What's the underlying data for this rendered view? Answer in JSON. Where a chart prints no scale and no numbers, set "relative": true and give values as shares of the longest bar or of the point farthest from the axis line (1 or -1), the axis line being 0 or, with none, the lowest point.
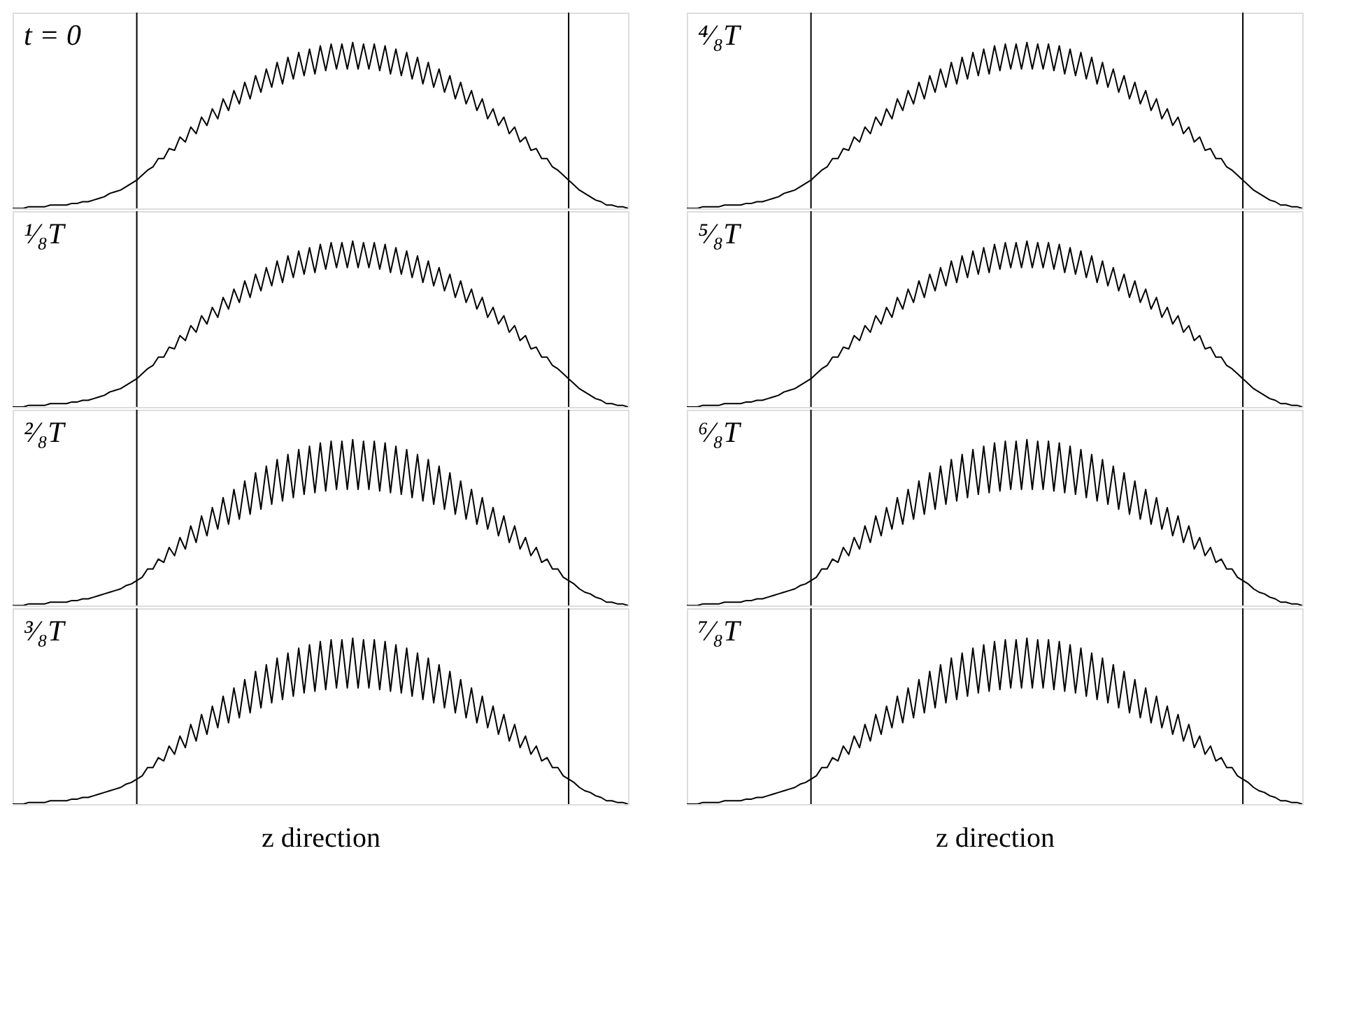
{
  "chart_data": [
    {
      "type": "line",
      "title": "t = 0",
      "relative": true,
      "color": "#000000",
      "grid": "x",
      "categories": [
        null,
        null,
        null,
        null,
        null,
        null,
        null,
        null,
        null,
        null,
        null,
        null,
        null,
        null,
        null,
        null,
        null,
        null,
        null,
        null,
        null,
        null,
        null,
        null,
        null,
        null,
        null,
        null,
        null,
        null,
        null,
        null,
        null,
        null,
        null,
        null,
        null,
        null,
        null,
        null,
        null,
        null,
        null,
        null,
        null,
        null,
        null,
        null,
        null,
        null,
        null,
        null,
        null,
        null,
        null,
        null,
        null,
        null,
        null,
        null,
        null,
        null,
        null,
        null,
        null,
        null,
        null,
        null,
        null,
        null,
        null,
        null,
        null,
        null,
        null,
        null,
        null,
        null,
        null,
        null,
        null,
        null,
        null,
        null,
        null,
        null,
        null,
        null,
        null,
        null,
        null,
        null,
        null,
        null,
        null,
        null,
        null,
        null,
        null,
        null,
        null,
        null,
        null,
        null,
        null,
        null,
        null,
        null,
        null,
        null,
        null,
        null,
        null,
        null,
        null
      ],
      "values": [
        0,
        0,
        0,
        0.01,
        0.01,
        0.01,
        0.01,
        0.02,
        0.02,
        0.02,
        0.02,
        0.03,
        0.03,
        0.04,
        0.04,
        0.05,
        0.06,
        0.07,
        0.09,
        0.1,
        0.11,
        0.13,
        0.15,
        0.17,
        0.2,
        0.23,
        0.25,
        0.3,
        0.3,
        0.36,
        0.35,
        0.43,
        0.4,
        0.49,
        0.45,
        0.55,
        0.5,
        0.6,
        0.54,
        0.66,
        0.59,
        0.71,
        0.63,
        0.76,
        0.66,
        0.8,
        0.7,
        0.84,
        0.73,
        0.88,
        0.75,
        0.91,
        0.78,
        0.94,
        0.8,
        0.96,
        0.81,
        0.98,
        0.83,
        0.99,
        0.84,
        0.99,
        0.84,
        1.0,
        0.84,
        0.99,
        0.84,
        0.99,
        0.83,
        0.98,
        0.81,
        0.96,
        0.8,
        0.94,
        0.78,
        0.91,
        0.75,
        0.88,
        0.73,
        0.84,
        0.7,
        0.8,
        0.66,
        0.76,
        0.63,
        0.71,
        0.59,
        0.66,
        0.54,
        0.6,
        0.5,
        0.55,
        0.45,
        0.49,
        0.4,
        0.43,
        0.35,
        0.36,
        0.3,
        0.3,
        0.25,
        0.23,
        0.2,
        0.17,
        0.14,
        0.11,
        0.09,
        0.07,
        0.05,
        0.04,
        0.02,
        0.02,
        0.01,
        0.01,
        0
      ]
    },
    {
      "type": "line",
      "title": "¹⁄₈T",
      "relative": true,
      "color": "#000000",
      "grid": "x",
      "categories": [
        null,
        null,
        null,
        null,
        null,
        null,
        null,
        null,
        null,
        null,
        null,
        null,
        null,
        null,
        null,
        null,
        null,
        null,
        null,
        null,
        null,
        null,
        null,
        null,
        null,
        null,
        null,
        null,
        null,
        null,
        null,
        null,
        null,
        null,
        null,
        null,
        null,
        null,
        null,
        null,
        null,
        null,
        null,
        null,
        null,
        null,
        null,
        null,
        null,
        null,
        null,
        null,
        null,
        null,
        null,
        null,
        null,
        null,
        null,
        null,
        null,
        null,
        null,
        null,
        null,
        null,
        null,
        null,
        null,
        null,
        null,
        null,
        null,
        null,
        null,
        null,
        null,
        null,
        null,
        null,
        null,
        null,
        null,
        null,
        null,
        null,
        null,
        null,
        null,
        null,
        null,
        null,
        null,
        null,
        null,
        null,
        null,
        null,
        null,
        null,
        null,
        null,
        null,
        null,
        null,
        null,
        null,
        null,
        null,
        null,
        null,
        null,
        null,
        null,
        null
      ],
      "values": [
        0,
        0,
        0,
        0.01,
        0.01,
        0.01,
        0.01,
        0.02,
        0.02,
        0.02,
        0.02,
        0.03,
        0.03,
        0.04,
        0.04,
        0.05,
        0.06,
        0.07,
        0.09,
        0.1,
        0.11,
        0.13,
        0.15,
        0.17,
        0.2,
        0.23,
        0.25,
        0.3,
        0.3,
        0.36,
        0.35,
        0.43,
        0.4,
        0.49,
        0.45,
        0.55,
        0.5,
        0.6,
        0.54,
        0.66,
        0.59,
        0.71,
        0.63,
        0.76,
        0.66,
        0.8,
        0.7,
        0.84,
        0.73,
        0.88,
        0.75,
        0.91,
        0.78,
        0.94,
        0.8,
        0.96,
        0.81,
        0.98,
        0.83,
        0.99,
        0.84,
        0.99,
        0.84,
        1.0,
        0.84,
        0.99,
        0.84,
        0.99,
        0.83,
        0.98,
        0.81,
        0.96,
        0.8,
        0.94,
        0.78,
        0.91,
        0.75,
        0.88,
        0.73,
        0.84,
        0.7,
        0.8,
        0.66,
        0.76,
        0.63,
        0.71,
        0.59,
        0.66,
        0.54,
        0.6,
        0.5,
        0.55,
        0.45,
        0.49,
        0.4,
        0.43,
        0.35,
        0.36,
        0.3,
        0.3,
        0.25,
        0.23,
        0.2,
        0.17,
        0.14,
        0.11,
        0.09,
        0.07,
        0.05,
        0.04,
        0.02,
        0.02,
        0.01,
        0.01,
        0
      ]
    },
    {
      "type": "line",
      "title": "²⁄₈T",
      "relative": true,
      "color": "#000000",
      "grid": "x",
      "categories": [
        null,
        null,
        null,
        null,
        null,
        null,
        null,
        null,
        null,
        null,
        null,
        null,
        null,
        null,
        null,
        null,
        null,
        null,
        null,
        null,
        null,
        null,
        null,
        null,
        null,
        null,
        null,
        null,
        null,
        null,
        null,
        null,
        null,
        null,
        null,
        null,
        null,
        null,
        null,
        null,
        null,
        null,
        null,
        null,
        null,
        null,
        null,
        null,
        null,
        null,
        null,
        null,
        null,
        null,
        null,
        null,
        null,
        null,
        null,
        null,
        null,
        null,
        null,
        null,
        null,
        null,
        null,
        null,
        null,
        null,
        null,
        null,
        null,
        null,
        null,
        null,
        null,
        null,
        null,
        null,
        null,
        null,
        null,
        null,
        null,
        null,
        null,
        null,
        null,
        null,
        null,
        null,
        null,
        null,
        null,
        null,
        null,
        null,
        null,
        null,
        null,
        null,
        null,
        null,
        null,
        null,
        null,
        null,
        null,
        null,
        null,
        null,
        null,
        null,
        null
      ],
      "values": [
        0,
        0,
        0,
        0.01,
        0.01,
        0.01,
        0.01,
        0.02,
        0.02,
        0.02,
        0.02,
        0.03,
        0.03,
        0.04,
        0.04,
        0.05,
        0.06,
        0.07,
        0.08,
        0.09,
        0.1,
        0.12,
        0.13,
        0.15,
        0.17,
        0.22,
        0.22,
        0.28,
        0.26,
        0.35,
        0.3,
        0.41,
        0.34,
        0.48,
        0.38,
        0.54,
        0.42,
        0.59,
        0.46,
        0.65,
        0.49,
        0.7,
        0.52,
        0.75,
        0.55,
        0.8,
        0.58,
        0.84,
        0.61,
        0.88,
        0.63,
        0.91,
        0.65,
        0.94,
        0.67,
        0.96,
        0.68,
        0.98,
        0.69,
        0.99,
        0.7,
        0.99,
        0.7,
        1.0,
        0.7,
        0.99,
        0.7,
        0.99,
        0.69,
        0.98,
        0.68,
        0.96,
        0.67,
        0.94,
        0.65,
        0.91,
        0.63,
        0.88,
        0.61,
        0.84,
        0.58,
        0.8,
        0.55,
        0.75,
        0.52,
        0.7,
        0.49,
        0.65,
        0.46,
        0.59,
        0.42,
        0.54,
        0.38,
        0.48,
        0.34,
        0.41,
        0.3,
        0.35,
        0.26,
        0.28,
        0.22,
        0.22,
        0.17,
        0.15,
        0.13,
        0.1,
        0.08,
        0.07,
        0.05,
        0.04,
        0.02,
        0.02,
        0.01,
        0.01,
        0
      ]
    },
    {
      "type": "line",
      "title": "³⁄₈T",
      "xlabel": "z direction",
      "relative": true,
      "color": "#000000",
      "grid": "x",
      "categories": [
        null,
        null,
        null,
        null,
        null,
        null,
        null,
        null,
        null,
        null,
        null,
        null,
        null,
        null,
        null,
        null,
        null,
        null,
        null,
        null,
        null,
        null,
        null,
        null,
        null,
        null,
        null,
        null,
        null,
        null,
        null,
        null,
        null,
        null,
        null,
        null,
        null,
        null,
        null,
        null,
        null,
        null,
        null,
        null,
        null,
        null,
        null,
        null,
        null,
        null,
        null,
        null,
        null,
        null,
        null,
        null,
        null,
        null,
        null,
        null,
        null,
        null,
        null,
        null,
        null,
        null,
        null,
        null,
        null,
        null,
        null,
        null,
        null,
        null,
        null,
        null,
        null,
        null,
        null,
        null,
        null,
        null,
        null,
        null,
        null,
        null,
        null,
        null,
        null,
        null,
        null,
        null,
        null,
        null,
        null,
        null,
        null,
        null,
        null,
        null,
        null,
        null,
        null,
        null,
        null,
        null,
        null,
        null,
        null,
        null,
        null,
        null,
        null,
        null,
        null
      ],
      "values": [
        0,
        0,
        0,
        0.01,
        0.01,
        0.01,
        0.01,
        0.02,
        0.02,
        0.02,
        0.02,
        0.03,
        0.03,
        0.04,
        0.04,
        0.05,
        0.06,
        0.07,
        0.08,
        0.09,
        0.1,
        0.12,
        0.13,
        0.15,
        0.17,
        0.22,
        0.22,
        0.28,
        0.26,
        0.35,
        0.3,
        0.41,
        0.34,
        0.48,
        0.38,
        0.54,
        0.42,
        0.59,
        0.46,
        0.65,
        0.49,
        0.7,
        0.52,
        0.75,
        0.55,
        0.8,
        0.58,
        0.84,
        0.61,
        0.88,
        0.63,
        0.91,
        0.65,
        0.94,
        0.67,
        0.96,
        0.68,
        0.98,
        0.69,
        0.99,
        0.7,
        0.99,
        0.7,
        1.0,
        0.7,
        0.99,
        0.7,
        0.99,
        0.69,
        0.98,
        0.68,
        0.96,
        0.67,
        0.94,
        0.65,
        0.91,
        0.63,
        0.88,
        0.61,
        0.84,
        0.58,
        0.8,
        0.55,
        0.75,
        0.52,
        0.7,
        0.49,
        0.65,
        0.46,
        0.59,
        0.42,
        0.54,
        0.38,
        0.48,
        0.34,
        0.41,
        0.3,
        0.35,
        0.26,
        0.28,
        0.22,
        0.22,
        0.17,
        0.15,
        0.13,
        0.1,
        0.08,
        0.07,
        0.05,
        0.04,
        0.02,
        0.02,
        0.01,
        0.01,
        0
      ]
    },
    {
      "type": "line",
      "title": "⁴⁄₈T",
      "relative": true,
      "color": "#000000",
      "grid": "x",
      "categories": [
        null,
        null,
        null,
        null,
        null,
        null,
        null,
        null,
        null,
        null,
        null,
        null,
        null,
        null,
        null,
        null,
        null,
        null,
        null,
        null,
        null,
        null,
        null,
        null,
        null,
        null,
        null,
        null,
        null,
        null,
        null,
        null,
        null,
        null,
        null,
        null,
        null,
        null,
        null,
        null,
        null,
        null,
        null,
        null,
        null,
        null,
        null,
        null,
        null,
        null,
        null,
        null,
        null,
        null,
        null,
        null,
        null,
        null,
        null,
        null,
        null,
        null,
        null,
        null,
        null,
        null,
        null,
        null,
        null,
        null,
        null,
        null,
        null,
        null,
        null,
        null,
        null,
        null,
        null,
        null,
        null,
        null,
        null,
        null,
        null,
        null,
        null,
        null,
        null,
        null,
        null,
        null,
        null,
        null,
        null,
        null,
        null,
        null,
        null,
        null,
        null,
        null,
        null,
        null,
        null,
        null,
        null,
        null,
        null,
        null,
        null,
        null,
        null,
        null,
        null
      ],
      "values": [
        0,
        0,
        0,
        0.01,
        0.01,
        0.01,
        0.01,
        0.02,
        0.02,
        0.02,
        0.02,
        0.03,
        0.03,
        0.04,
        0.04,
        0.05,
        0.06,
        0.07,
        0.09,
        0.1,
        0.11,
        0.13,
        0.15,
        0.17,
        0.2,
        0.23,
        0.25,
        0.3,
        0.3,
        0.36,
        0.35,
        0.43,
        0.4,
        0.49,
        0.45,
        0.55,
        0.5,
        0.6,
        0.54,
        0.66,
        0.59,
        0.71,
        0.63,
        0.76,
        0.66,
        0.8,
        0.7,
        0.84,
        0.73,
        0.88,
        0.75,
        0.91,
        0.78,
        0.94,
        0.8,
        0.96,
        0.81,
        0.98,
        0.83,
        0.99,
        0.84,
        0.99,
        0.84,
        1.0,
        0.84,
        0.99,
        0.84,
        0.99,
        0.83,
        0.98,
        0.81,
        0.96,
        0.8,
        0.94,
        0.78,
        0.91,
        0.75,
        0.88,
        0.73,
        0.84,
        0.7,
        0.8,
        0.66,
        0.76,
        0.63,
        0.71,
        0.59,
        0.66,
        0.54,
        0.6,
        0.5,
        0.55,
        0.45,
        0.49,
        0.4,
        0.43,
        0.35,
        0.36,
        0.3,
        0.3,
        0.25,
        0.23,
        0.2,
        0.17,
        0.14,
        0.11,
        0.09,
        0.07,
        0.05,
        0.04,
        0.02,
        0.02,
        0.01,
        0.01,
        0
      ]
    },
    {
      "type": "line",
      "title": "⁵⁄₈T",
      "relative": true,
      "color": "#000000",
      "grid": "x",
      "categories": [
        null,
        null,
        null,
        null,
        null,
        null,
        null,
        null,
        null,
        null,
        null,
        null,
        null,
        null,
        null,
        null,
        null,
        null,
        null,
        null,
        null,
        null,
        null,
        null,
        null,
        null,
        null,
        null,
        null,
        null,
        null,
        null,
        null,
        null,
        null,
        null,
        null,
        null,
        null,
        null,
        null,
        null,
        null,
        null,
        null,
        null,
        null,
        null,
        null,
        null,
        null,
        null,
        null,
        null,
        null,
        null,
        null,
        null,
        null,
        null,
        null,
        null,
        null,
        null,
        null,
        null,
        null,
        null,
        null,
        null,
        null,
        null,
        null,
        null,
        null,
        null,
        null,
        null,
        null,
        null,
        null,
        null,
        null,
        null,
        null,
        null,
        null,
        null,
        null,
        null,
        null,
        null,
        null,
        null,
        null,
        null,
        null,
        null,
        null,
        null,
        null,
        null,
        null,
        null,
        null,
        null,
        null,
        null,
        null,
        null,
        null,
        null,
        null,
        null,
        null
      ],
      "values": [
        0,
        0,
        0,
        0.01,
        0.01,
        0.01,
        0.01,
        0.02,
        0.02,
        0.02,
        0.02,
        0.03,
        0.03,
        0.04,
        0.04,
        0.05,
        0.06,
        0.07,
        0.09,
        0.1,
        0.11,
        0.13,
        0.15,
        0.17,
        0.2,
        0.23,
        0.25,
        0.3,
        0.3,
        0.36,
        0.35,
        0.43,
        0.4,
        0.49,
        0.45,
        0.55,
        0.5,
        0.6,
        0.54,
        0.66,
        0.59,
        0.71,
        0.63,
        0.76,
        0.66,
        0.8,
        0.7,
        0.84,
        0.73,
        0.88,
        0.75,
        0.91,
        0.78,
        0.94,
        0.8,
        0.96,
        0.81,
        0.98,
        0.83,
        0.99,
        0.84,
        0.99,
        0.84,
        1.0,
        0.84,
        0.99,
        0.84,
        0.99,
        0.83,
        0.98,
        0.81,
        0.96,
        0.8,
        0.94,
        0.78,
        0.91,
        0.75,
        0.88,
        0.73,
        0.84,
        0.7,
        0.8,
        0.66,
        0.76,
        0.63,
        0.71,
        0.59,
        0.66,
        0.54,
        0.6,
        0.5,
        0.55,
        0.45,
        0.49,
        0.4,
        0.43,
        0.35,
        0.36,
        0.3,
        0.3,
        0.25,
        0.23,
        0.2,
        0.17,
        0.14,
        0.11,
        0.09,
        0.07,
        0.05,
        0.04,
        0.02,
        0.02,
        0.01,
        0.01,
        0
      ]
    },
    {
      "type": "line",
      "title": "⁶⁄₈T",
      "relative": true,
      "color": "#000000",
      "grid": "x",
      "categories": [
        null,
        null,
        null,
        null,
        null,
        null,
        null,
        null,
        null,
        null,
        null,
        null,
        null,
        null,
        null,
        null,
        null,
        null,
        null,
        null,
        null,
        null,
        null,
        null,
        null,
        null,
        null,
        null,
        null,
        null,
        null,
        null,
        null,
        null,
        null,
        null,
        null,
        null,
        null,
        null,
        null,
        null,
        null,
        null,
        null,
        null,
        null,
        null,
        null,
        null,
        null,
        null,
        null,
        null,
        null,
        null,
        null,
        null,
        null,
        null,
        null,
        null,
        null,
        null,
        null,
        null,
        null,
        null,
        null,
        null,
        null,
        null,
        null,
        null,
        null,
        null,
        null,
        null,
        null,
        null,
        null,
        null,
        null,
        null,
        null,
        null,
        null,
        null,
        null,
        null,
        null,
        null,
        null,
        null,
        null,
        null,
        null,
        null,
        null,
        null,
        null,
        null,
        null,
        null,
        null,
        null,
        null,
        null,
        null,
        null,
        null,
        null,
        null,
        null,
        null
      ],
      "values": [
        0,
        0,
        0,
        0.01,
        0.01,
        0.01,
        0.01,
        0.02,
        0.02,
        0.02,
        0.02,
        0.03,
        0.03,
        0.04,
        0.04,
        0.05,
        0.06,
        0.07,
        0.08,
        0.09,
        0.1,
        0.12,
        0.13,
        0.15,
        0.17,
        0.22,
        0.22,
        0.28,
        0.26,
        0.35,
        0.3,
        0.41,
        0.34,
        0.48,
        0.38,
        0.54,
        0.42,
        0.59,
        0.46,
        0.65,
        0.49,
        0.7,
        0.52,
        0.75,
        0.55,
        0.8,
        0.58,
        0.84,
        0.61,
        0.88,
        0.63,
        0.91,
        0.65,
        0.94,
        0.67,
        0.96,
        0.68,
        0.98,
        0.69,
        0.99,
        0.7,
        0.99,
        0.7,
        1.0,
        0.7,
        0.99,
        0.7,
        0.99,
        0.69,
        0.98,
        0.68,
        0.96,
        0.67,
        0.94,
        0.65,
        0.91,
        0.63,
        0.88,
        0.61,
        0.84,
        0.58,
        0.8,
        0.55,
        0.75,
        0.52,
        0.7,
        0.49,
        0.65,
        0.46,
        0.59,
        0.42,
        0.54,
        0.38,
        0.48,
        0.34,
        0.41,
        0.3,
        0.35,
        0.26,
        0.28,
        0.22,
        0.22,
        0.17,
        0.15,
        0.13,
        0.1,
        0.08,
        0.07,
        0.05,
        0.04,
        0.02,
        0.02,
        0.01,
        0.01,
        0
      ]
    },
    {
      "type": "line",
      "title": "⁷⁄₈T",
      "xlabel": "z direction",
      "relative": true,
      "color": "#000000",
      "grid": "x",
      "categories": [
        null,
        null,
        null,
        null,
        null,
        null,
        null,
        null,
        null,
        null,
        null,
        null,
        null,
        null,
        null,
        null,
        null,
        null,
        null,
        null,
        null,
        null,
        null,
        null,
        null,
        null,
        null,
        null,
        null,
        null,
        null,
        null,
        null,
        null,
        null,
        null,
        null,
        null,
        null,
        null,
        null,
        null,
        null,
        null,
        null,
        null,
        null,
        null,
        null,
        null,
        null,
        null,
        null,
        null,
        null,
        null,
        null,
        null,
        null,
        null,
        null,
        null,
        null,
        null,
        null,
        null,
        null,
        null,
        null,
        null,
        null,
        null,
        null,
        null,
        null,
        null,
        null,
        null,
        null,
        null,
        null,
        null,
        null,
        null,
        null,
        null,
        null,
        null,
        null,
        null,
        null,
        null,
        null,
        null,
        null,
        null,
        null,
        null,
        null,
        null,
        null,
        null,
        null,
        null,
        null,
        null,
        null,
        null,
        null,
        null,
        null,
        null,
        null,
        null,
        null
      ],
      "values": [
        0,
        0,
        0,
        0.01,
        0.01,
        0.01,
        0.01,
        0.02,
        0.02,
        0.02,
        0.02,
        0.03,
        0.03,
        0.04,
        0.04,
        0.05,
        0.06,
        0.07,
        0.08,
        0.09,
        0.1,
        0.12,
        0.13,
        0.15,
        0.17,
        0.22,
        0.22,
        0.28,
        0.26,
        0.35,
        0.3,
        0.41,
        0.34,
        0.48,
        0.38,
        0.54,
        0.42,
        0.59,
        0.46,
        0.65,
        0.49,
        0.7,
        0.52,
        0.75,
        0.55,
        0.8,
        0.58,
        0.84,
        0.61,
        0.88,
        0.63,
        0.91,
        0.65,
        0.94,
        0.67,
        0.96,
        0.68,
        0.98,
        0.69,
        0.99,
        0.7,
        0.99,
        0.7,
        1.0,
        0.7,
        0.99,
        0.7,
        0.99,
        0.69,
        0.98,
        0.68,
        0.96,
        0.67,
        0.94,
        0.65,
        0.91,
        0.63,
        0.88,
        0.61,
        0.84,
        0.58,
        0.8,
        0.55,
        0.75,
        0.52,
        0.7,
        0.49,
        0.65,
        0.46,
        0.59,
        0.42,
        0.54,
        0.38,
        0.48,
        0.34,
        0.41,
        0.3,
        0.35,
        0.26,
        0.28,
        0.22,
        0.22,
        0.17,
        0.15,
        0.13,
        0.1,
        0.08,
        0.07,
        0.05,
        0.04,
        0.02,
        0.02,
        0.01,
        0.01,
        0
      ]
    }
  ]
}
